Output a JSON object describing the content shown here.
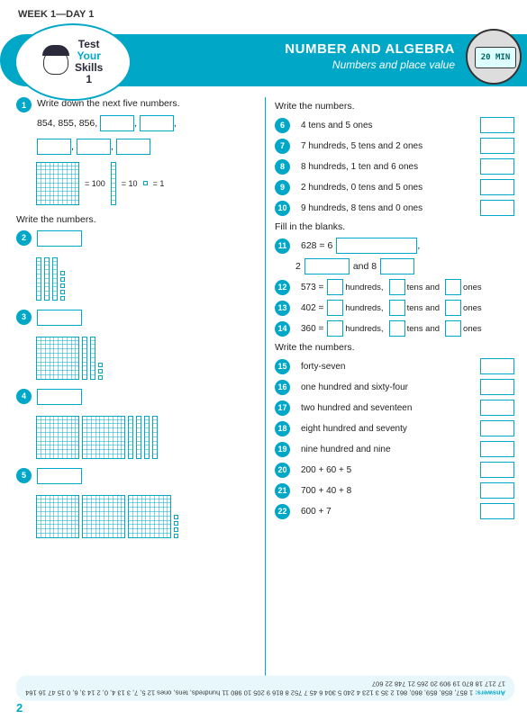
{
  "header": {
    "week_day": "WEEK 1—DAY 1",
    "logo": {
      "l1": "Test",
      "l2": "Your",
      "l3": "Skills",
      "num": "1"
    },
    "title": "NUMBER AND ALGEBRA",
    "subtitle": "Numbers and place value",
    "timer": "20 MIN"
  },
  "left": {
    "q1_instr": "Write down the next five numbers.",
    "q1_seq": "854, 855, 856,",
    "key_100": "= 100",
    "key_10": "= 10",
    "key_1": "= 1",
    "sect": "Write the numbers.",
    "q2_num": "2",
    "q3_num": "3",
    "q4_num": "4",
    "q5_num": "5"
  },
  "right": {
    "sect1": "Write the numbers.",
    "items1": [
      {
        "n": "6",
        "t": "4 tens and 5 ones"
      },
      {
        "n": "7",
        "t": "7 hundreds, 5 tens and 2 ones"
      },
      {
        "n": "8",
        "t": "8 hundreds, 1 ten and 6 ones"
      },
      {
        "n": "9",
        "t": "2 hundreds, 0 tens and 5 ones"
      },
      {
        "n": "10",
        "t": "9 hundreds, 8 tens and 0 ones"
      }
    ],
    "sect2": "Fill in the blanks.",
    "q11": {
      "n": "11",
      "pre": "628 = 6",
      "mid": "2",
      "post": "and 8"
    },
    "items2": [
      {
        "n": "12",
        "v": "573"
      },
      {
        "n": "13",
        "v": "402"
      },
      {
        "n": "14",
        "v": "360"
      }
    ],
    "htolabels": {
      "h": "hundreds,",
      "t": "tens and",
      "o": "ones"
    },
    "sect3": "Write the numbers.",
    "items3": [
      {
        "n": "15",
        "t": "forty-seven"
      },
      {
        "n": "16",
        "t": "one hundred and sixty-four"
      },
      {
        "n": "17",
        "t": "two hundred and seventeen"
      },
      {
        "n": "18",
        "t": "eight hundred and seventy"
      },
      {
        "n": "19",
        "t": "nine hundred and nine"
      },
      {
        "n": "20",
        "t": "200 + 60 + 5"
      },
      {
        "n": "21",
        "t": "700 + 40 + 8"
      },
      {
        "n": "22",
        "t": "600 + 7"
      }
    ]
  },
  "answers": {
    "label": "Answers:",
    "text": "1 857, 858, 859, 860, 861  2 35  3 123  4 240  5 304  6 45  7 752  8 816  9 205  10 980  11 hundreds, tens, ones  12 5, 7, 3  13 4, 0, 2  14 3, 6, 0  15 47  16 164  17 217  18 870  19 909  20 265  21 748  22 607"
  },
  "page_number": "2",
  "comma": ","
}
